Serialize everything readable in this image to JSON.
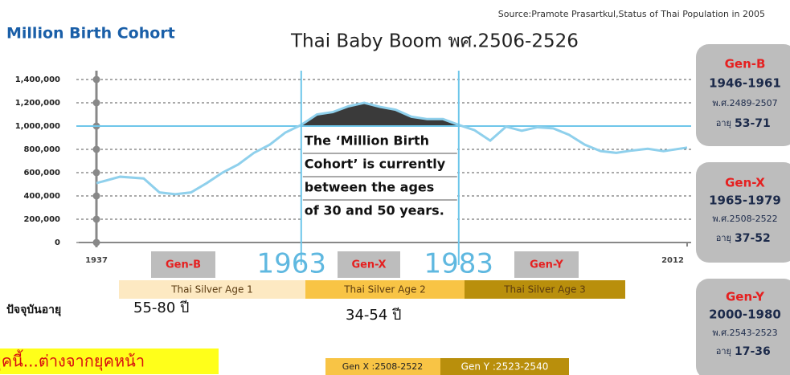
{
  "chart_data": {
    "type": "line",
    "heading": "Million Birth Cohort",
    "title": "Thai Baby Boom พศ.2506-2526",
    "source": "Source:Pramote Prasartkul,Status of Thai Population in 2005",
    "x": [
      1937,
      1940,
      1943,
      1945,
      1947,
      1949,
      1951,
      1953,
      1955,
      1957,
      1959,
      1961,
      1963,
      1965,
      1967,
      1969,
      1971,
      1973,
      1975,
      1977,
      1979,
      1981,
      1983,
      1985,
      1987,
      1989,
      1991,
      1993,
      1995,
      1997,
      1999,
      2001,
      2003,
      2005,
      2007,
      2009,
      2012
    ],
    "values": [
      510000,
      565000,
      550000,
      430000,
      415000,
      430000,
      510000,
      600000,
      670000,
      770000,
      840000,
      945000,
      1010000,
      1100000,
      1120000,
      1170000,
      1200000,
      1165000,
      1140000,
      1080000,
      1060000,
      1060000,
      1010000,
      965000,
      875000,
      995000,
      960000,
      990000,
      980000,
      925000,
      840000,
      785000,
      770000,
      790000,
      805000,
      785000,
      815000
    ],
    "color": "#8fd0ec",
    "boom_fill": "#3a3a3a",
    "xlim": [
      1937,
      2012
    ],
    "xticks": [
      1937,
      2012
    ],
    "ylim": [
      0,
      1400000
    ],
    "yticks": [
      0,
      {
        "value": 200000,
        "label": "200,000"
      },
      {
        "value": 400000,
        "label": "400,000"
      },
      {
        "value": 600000,
        "label": "600,000"
      },
      {
        "value": 800000,
        "label": "800,000"
      },
      {
        "value": 1000000,
        "label": "1,000,000"
      },
      {
        "value": 1200000,
        "label": "1,200,000"
      },
      {
        "value": 1400000,
        "label": "1,400,000"
      }
    ],
    "grid": true,
    "reference_line": 1000000,
    "boom_years": [
      1963,
      1983
    ],
    "annotation": [
      "The ‘Million Birth",
      "Cohort’ is currently",
      "between the ages",
      "of 30 and 50 years."
    ]
  },
  "generation_tags": [
    "Gen-B",
    "Gen-X",
    "Gen-Y"
  ],
  "silver_ages": [
    "Thai Silver Age 1",
    "Thai Silver Age 2",
    "Thai Silver Age 3"
  ],
  "current_age": {
    "label": "ปัจจุบันอายุ",
    "gen_b": "55-80 ปี",
    "gen_x": "34-54 ปี"
  },
  "banner": "ยุคนี้...ต่างจากยุคหน้า",
  "ranges": [
    "Gen X :2508-2522",
    "Gen Y :2523-2540"
  ],
  "cards": [
    {
      "name": "Gen-B",
      "years": "1946-1961",
      "thai_years": "พ.ศ.2489-2507",
      "age_label": "อายุ",
      "age": "53-71"
    },
    {
      "name": "Gen-X",
      "years": "1965-1979",
      "thai_years": "พ.ศ.2508-2522",
      "age_label": "อายุ",
      "age": "37-52"
    },
    {
      "name": "Gen-Y",
      "years": "2000-1980",
      "thai_years": "พ.ศ.2543-2523",
      "age_label": "อายุ",
      "age": "17-36"
    }
  ]
}
